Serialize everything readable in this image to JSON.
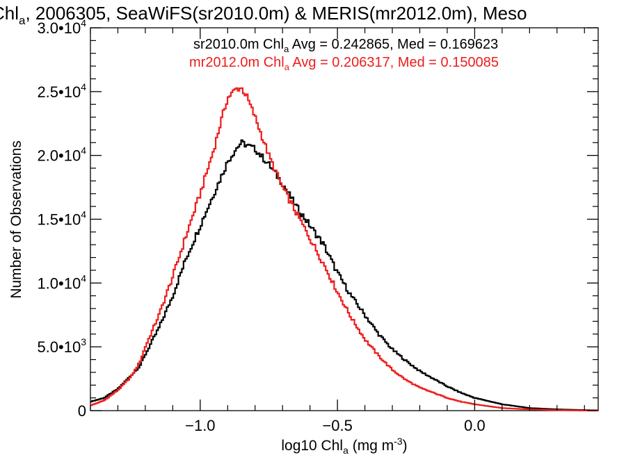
{
  "chart_data": {
    "type": "line",
    "title": {
      "prefix": "Chl",
      "sub": "a",
      "rest": ", 2006305, SeaWiFS(sr2010.0m) & MERIS(mr2012.0m), Meso"
    },
    "xlabel": {
      "prefix": "log10 Chl",
      "sub": "a",
      "mid": " (mg m",
      "sup": "-3",
      "suffix": ")"
    },
    "ylabel": "Number of Observations",
    "xlim": [
      -1.4,
      0.45
    ],
    "ylim": [
      0,
      30000
    ],
    "grid": false,
    "step": true,
    "x_ticks": [
      {
        "value": -1.0,
        "label": "−1.0"
      },
      {
        "value": -0.5,
        "label": "−0.5"
      },
      {
        "value": 0.0,
        "label": "0.0"
      }
    ],
    "y_ticks": [
      {
        "value": 0,
        "mant": "0",
        "exp": ""
      },
      {
        "value": 5000,
        "mant": "5.0•10",
        "exp": "3"
      },
      {
        "value": 10000,
        "mant": "1.0•10",
        "exp": "4"
      },
      {
        "value": 15000,
        "mant": "1.5•10",
        "exp": "4"
      },
      {
        "value": 20000,
        "mant": "2.0•10",
        "exp": "4"
      },
      {
        "value": 25000,
        "mant": "2.5•10",
        "exp": "4"
      },
      {
        "value": 30000,
        "mant": "3.0•10",
        "exp": "4"
      }
    ],
    "legend_position": "top-right",
    "series": [
      {
        "name": "sr2010.0m",
        "label": {
          "a": "sr2010.0m Chl",
          "sub": "a",
          "b": " Avg = 0.242865, Med = 0.169623"
        },
        "color": "#000000",
        "points": [
          [
            -1.4,
            700
          ],
          [
            -1.35,
            1000
          ],
          [
            -1.3,
            1700
          ],
          [
            -1.25,
            2800
          ],
          [
            -1.22,
            3500
          ],
          [
            -1.2,
            4400
          ],
          [
            -1.15,
            6500
          ],
          [
            -1.1,
            9000
          ],
          [
            -1.05,
            12000
          ],
          [
            -1.0,
            14500
          ],
          [
            -0.95,
            17000
          ],
          [
            -0.92,
            18500
          ],
          [
            -0.9,
            19500
          ],
          [
            -0.87,
            20500
          ],
          [
            -0.85,
            21000
          ],
          [
            -0.83,
            20800
          ],
          [
            -0.8,
            20500
          ],
          [
            -0.75,
            19300
          ],
          [
            -0.7,
            17800
          ],
          [
            -0.65,
            16000
          ],
          [
            -0.6,
            14500
          ],
          [
            -0.55,
            13000
          ],
          [
            -0.5,
            10800
          ],
          [
            -0.45,
            9000
          ],
          [
            -0.4,
            7500
          ],
          [
            -0.35,
            6000
          ],
          [
            -0.3,
            4800
          ],
          [
            -0.25,
            3900
          ],
          [
            -0.2,
            3100
          ],
          [
            -0.15,
            2500
          ],
          [
            -0.1,
            1900
          ],
          [
            -0.05,
            1400
          ],
          [
            0.0,
            1000
          ],
          [
            0.05,
            750
          ],
          [
            0.1,
            500
          ],
          [
            0.15,
            350
          ],
          [
            0.2,
            200
          ],
          [
            0.3,
            100
          ],
          [
            0.4,
            40
          ],
          [
            0.45,
            20
          ]
        ]
      },
      {
        "name": "mr2012.0m",
        "label": {
          "a": "mr2012.0m Chl",
          "sub": "a",
          "b": " Avg = 0.206317, Med = 0.150085"
        },
        "color": "#ee1c1c",
        "points": [
          [
            -1.4,
            400
          ],
          [
            -1.35,
            800
          ],
          [
            -1.3,
            1600
          ],
          [
            -1.25,
            2700
          ],
          [
            -1.22,
            3800
          ],
          [
            -1.2,
            5000
          ],
          [
            -1.15,
            7500
          ],
          [
            -1.1,
            10500
          ],
          [
            -1.05,
            13800
          ],
          [
            -1.0,
            17000
          ],
          [
            -0.95,
            20500
          ],
          [
            -0.92,
            23000
          ],
          [
            -0.9,
            24500
          ],
          [
            -0.87,
            25200
          ],
          [
            -0.85,
            25300
          ],
          [
            -0.83,
            24600
          ],
          [
            -0.8,
            23000
          ],
          [
            -0.75,
            20000
          ],
          [
            -0.7,
            17500
          ],
          [
            -0.65,
            15500
          ],
          [
            -0.6,
            13500
          ],
          [
            -0.55,
            11500
          ],
          [
            -0.5,
            9300
          ],
          [
            -0.45,
            7300
          ],
          [
            -0.4,
            5600
          ],
          [
            -0.35,
            4300
          ],
          [
            -0.3,
            3200
          ],
          [
            -0.25,
            2400
          ],
          [
            -0.2,
            1800
          ],
          [
            -0.15,
            1400
          ],
          [
            -0.1,
            1000
          ],
          [
            -0.05,
            700
          ],
          [
            0.0,
            500
          ],
          [
            0.05,
            350
          ],
          [
            0.1,
            200
          ],
          [
            0.15,
            150
          ],
          [
            0.2,
            100
          ],
          [
            0.3,
            40
          ],
          [
            0.4,
            10
          ],
          [
            0.45,
            5
          ]
        ]
      }
    ]
  }
}
